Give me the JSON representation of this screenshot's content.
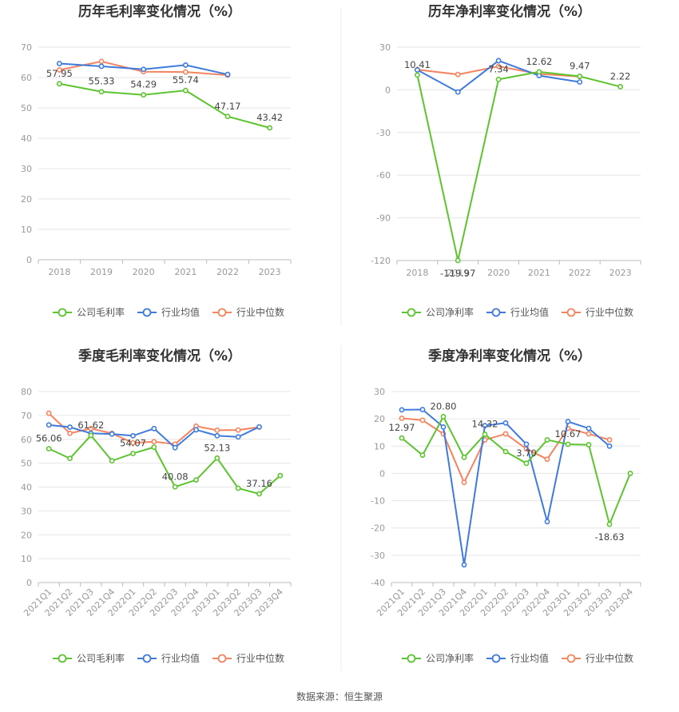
{
  "source_label": "数据来源：恒生聚源",
  "colors": {
    "company": "#5cc42f",
    "avg": "#3e7bdc",
    "median": "#f4845f",
    "grid": "#e6e6e6",
    "axis": "#bbbbbb"
  },
  "chart_data": [
    {
      "type": "line",
      "title": "历年毛利率变化情况（%）",
      "categories": [
        "2018",
        "2019",
        "2020",
        "2021",
        "2022",
        "2023"
      ],
      "ylim": [
        0,
        70
      ],
      "yticks": [
        0,
        10,
        20,
        30,
        40,
        50,
        60,
        70
      ],
      "series": [
        {
          "name": "公司毛利率",
          "key": "company",
          "values": [
            57.95,
            55.33,
            54.29,
            55.74,
            47.17,
            43.42
          ]
        },
        {
          "name": "行业均值",
          "key": "avg",
          "values": [
            64.6,
            63.7,
            62.7,
            64.1,
            61.0,
            null
          ]
        },
        {
          "name": "行业中位数",
          "key": "median",
          "values": [
            62.5,
            65.3,
            61.9,
            61.8,
            60.8,
            null
          ]
        }
      ],
      "data_labels": [
        "57.95",
        "55.33",
        "54.29",
        "55.74",
        "47.17",
        "43.42"
      ],
      "legend": "bottom"
    },
    {
      "type": "line",
      "title": "历年净利率变化情况（%）",
      "categories": [
        "2018",
        "2019",
        "2020",
        "2021",
        "2022",
        "2023"
      ],
      "ylim": [
        -120,
        30
      ],
      "yticks": [
        -120,
        -90,
        -60,
        -30,
        0,
        30
      ],
      "series": [
        {
          "name": "公司净利率",
          "key": "company",
          "values": [
            10.41,
            -119.97,
            7.34,
            12.62,
            9.47,
            2.22
          ]
        },
        {
          "name": "行业均值",
          "key": "avg",
          "values": [
            14.0,
            -1.5,
            20.5,
            10.0,
            5.5,
            null
          ]
        },
        {
          "name": "行业中位数",
          "key": "median",
          "values": [
            14.2,
            10.8,
            16.5,
            11.2,
            9.3,
            null
          ]
        }
      ],
      "data_labels": [
        "10.41",
        "-119.97",
        "7.34",
        "12.62",
        "9.47",
        "2.22"
      ],
      "legend": "bottom"
    },
    {
      "type": "line",
      "title": "季度毛利率变化情况（%）",
      "categories": [
        "2021Q1",
        "2021Q2",
        "2021Q3",
        "2021Q4",
        "2022Q1",
        "2022Q2",
        "2022Q3",
        "2022Q4",
        "2023Q1",
        "2023Q2",
        "2023Q3",
        "2023Q4"
      ],
      "ylim": [
        0,
        80
      ],
      "yticks": [
        0,
        10,
        20,
        30,
        40,
        50,
        60,
        70,
        80
      ],
      "series": [
        {
          "name": "公司毛利率",
          "key": "company",
          "values": [
            56.06,
            52.0,
            61.62,
            51.0,
            54.07,
            56.7,
            40.08,
            43.0,
            52.13,
            39.5,
            37.16,
            44.8
          ]
        },
        {
          "name": "行业均值",
          "key": "avg",
          "values": [
            66.0,
            65.1,
            62.5,
            62.2,
            61.5,
            64.5,
            56.5,
            64.0,
            61.5,
            61.0,
            65.2,
            null
          ]
        },
        {
          "name": "行业中位数",
          "key": "median",
          "values": [
            70.9,
            62.5,
            64.5,
            62.5,
            58.5,
            59.0,
            58.0,
            65.5,
            63.8,
            63.9,
            65.1,
            null
          ]
        }
      ],
      "data_labels": [
        "56.06",
        "",
        "61.62",
        "",
        "54.07",
        "",
        "40.08",
        "",
        "52.13",
        "",
        "37.16",
        ""
      ],
      "legend": "bottom"
    },
    {
      "type": "line",
      "title": "季度净利率变化情况（%）",
      "categories": [
        "2021Q1",
        "2021Q2",
        "2021Q3",
        "2021Q4",
        "2022Q1",
        "2022Q2",
        "2022Q3",
        "2022Q4",
        "2023Q1",
        "2023Q2",
        "2023Q3",
        "2023Q4"
      ],
      "ylim": [
        -40,
        30
      ],
      "yticks": [
        -40,
        -30,
        -20,
        -10,
        0,
        10,
        20,
        30
      ],
      "series": [
        {
          "name": "公司净利率",
          "key": "company",
          "values": [
            12.97,
            6.7,
            20.8,
            5.9,
            14.32,
            8.0,
            3.7,
            12.3,
            10.67,
            10.5,
            -18.63,
            0.0
          ]
        },
        {
          "name": "行业均值",
          "key": "avg",
          "values": [
            23.3,
            23.4,
            17.0,
            -33.5,
            17.5,
            18.5,
            10.7,
            -17.7,
            19.0,
            16.5,
            10.0,
            null
          ]
        },
        {
          "name": "行业中位数",
          "key": "median",
          "values": [
            20.2,
            19.5,
            14.5,
            -3.3,
            12.3,
            14.5,
            9.0,
            5.2,
            16.5,
            14.5,
            12.3,
            null
          ]
        }
      ],
      "data_labels": [
        "12.97",
        "",
        "20.80",
        "",
        "14.32",
        "",
        "3.70",
        "",
        "10.67",
        "",
        "-18.63",
        ""
      ],
      "legend": "bottom"
    }
  ]
}
